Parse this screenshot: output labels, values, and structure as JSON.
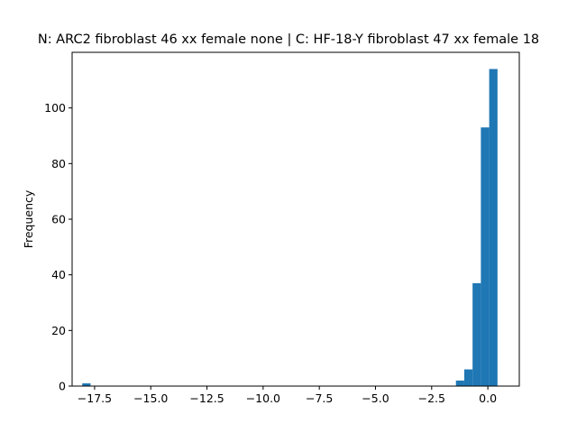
{
  "chart_data": {
    "type": "bar",
    "title": "N: ARC2 fibroblast 46 xx female none | C: HF-18-Y fibroblast 47 xx female 18",
    "xlabel": "",
    "ylabel": "Frequency",
    "xlim": [
      -18.5,
      1.4
    ],
    "ylim": [
      0,
      120
    ],
    "bar_color": "#1f77b4",
    "grid": false,
    "x_ticks": [
      -17.5,
      -15.0,
      -12.5,
      -10.0,
      -7.5,
      -5.0,
      -2.5,
      0.0
    ],
    "x_tick_labels": [
      "−17.5",
      "−15.0",
      "−12.5",
      "−10.0",
      "−7.5",
      "−5.0",
      "−2.5",
      "0.0"
    ],
    "y_ticks": [
      0,
      20,
      40,
      60,
      80,
      100
    ],
    "y_tick_labels": [
      "0",
      "20",
      "40",
      "60",
      "80",
      "100"
    ],
    "bins": [
      {
        "x0": -18.05,
        "x1": -17.68,
        "count": 1
      },
      {
        "x0": -1.42,
        "x1": -1.05,
        "count": 2
      },
      {
        "x0": -1.05,
        "x1": -0.68,
        "count": 6
      },
      {
        "x0": -0.68,
        "x1": -0.31,
        "count": 37
      },
      {
        "x0": -0.31,
        "x1": 0.06,
        "count": 93
      },
      {
        "x0": 0.06,
        "x1": 0.43,
        "count": 114
      }
    ]
  }
}
